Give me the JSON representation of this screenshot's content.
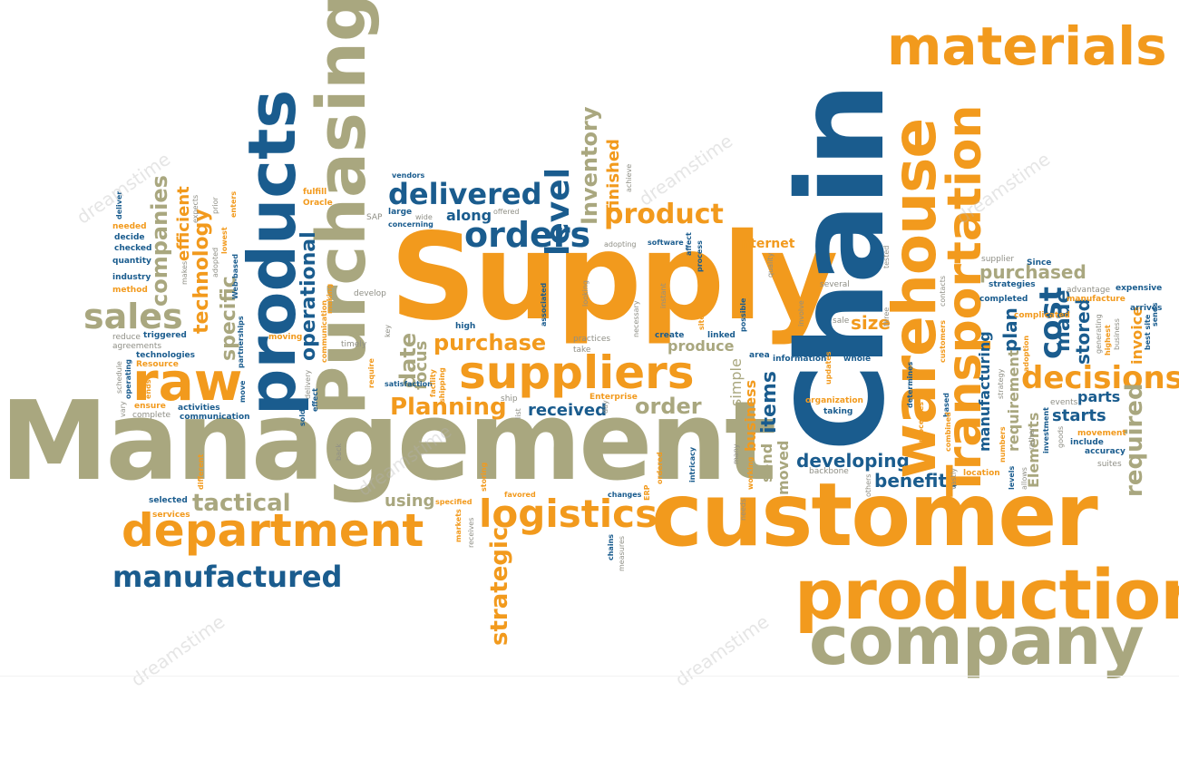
{
  "words": {
    "management": "Management",
    "supply": "Supply",
    "chain": "Chain",
    "customer": "customer",
    "production": "production",
    "company": "company",
    "materials": "materials",
    "warehouse": "warehouse",
    "transportation": "Transportation",
    "products": "products",
    "purchasing": "Purchasing",
    "raw": "raw",
    "suppliers": "suppliers",
    "department": "department",
    "logistics": "logistics",
    "manufactured": "manufactured",
    "tactical": "tactical",
    "sales": "sales",
    "delivered": "delivered",
    "orders": "orders",
    "along": "along",
    "level": "level",
    "inventory": "Inventory",
    "finished": "finished",
    "product": "product",
    "purchase": "purchase",
    "planning": "Planning",
    "received": "received",
    "order": "order",
    "produce": "produce",
    "internet": "Internet",
    "decisions": "decisions",
    "parts": "parts",
    "starts": "starts",
    "required": "required",
    "cost": "cost",
    "plan": "plan",
    "made": "made",
    "stored": "stored",
    "invoice": "invoice",
    "purchased": "purchased",
    "developing": "developing",
    "benefits": "benefits",
    "items": "items",
    "size": "size",
    "strategic": "strategic",
    "using": "using",
    "companies": "companies",
    "technology": "technology",
    "efficient": "efficient",
    "specific": "specific",
    "operational": "operational",
    "date": "date",
    "focus": "focus",
    "business": "business",
    "simple": "simple",
    "moved": "moved",
    "send": "send",
    "manufacturing": "manufacturing",
    "requirement": "requirement",
    "elements": "Elements"
  },
  "small_words": {
    "deliver": "deliver",
    "needed": "needed",
    "decide": "decide",
    "checked": "checked",
    "quantity": "quantity",
    "industry": "industry",
    "method": "method",
    "reduce": "reduce",
    "agreements": "agreements",
    "triggered": "triggered",
    "technologies": "technologies",
    "resource": "Resource",
    "operating": "operating",
    "ensure": "ensure",
    "complete": "complete",
    "activities": "activities",
    "communication": "communication",
    "selected": "selected",
    "services": "services",
    "different": "different",
    "moving": "moving",
    "timely": "timely",
    "web_based": "Web-based",
    "partnerships": "partnerships",
    "fulfill": "fulfill",
    "oracle": "Oracle",
    "vendors": "vendors",
    "sap": "SAP",
    "large": "large",
    "wide": "wide",
    "concerning": "concerning",
    "offered": "offered",
    "high": "high",
    "develop": "develop",
    "satisfaction": "satisfaction",
    "practices": "practices",
    "take": "take",
    "enterprise": "Enterprise",
    "ship": "ship",
    "specified": "specified",
    "favored": "favored",
    "changes": "changes",
    "adopting": "adopting",
    "software": "software",
    "create": "create",
    "linked": "linked",
    "information": "information",
    "whole": "whole",
    "organization": "organization",
    "taking": "taking",
    "backbone": "backbone",
    "several": "several",
    "sale": "sale",
    "supplier": "supplier",
    "strategies": "strategies",
    "completed": "completed",
    "complicated": "complicated",
    "since": "Since",
    "advantage": "advantage",
    "manufacture": "manufacture",
    "expensive": "expensive",
    "arrives": "arrives",
    "events": "events",
    "movement": "movement",
    "include": "include",
    "accuracy": "accuracy",
    "suites": "suites",
    "location": "location",
    "best_site": "best site",
    "area": "area",
    "expects": "expects",
    "makes": "makes",
    "prior": "prior",
    "enters": "enters",
    "lowest": "lowest",
    "adopted": "adopted",
    "associated": "associated",
    "looking": "looking",
    "instant": "instant",
    "necessary": "necessary",
    "achieve": "achieve",
    "affect": "affect",
    "process": "process",
    "sites": "sites",
    "possible": "possible",
    "quality": "quality",
    "involve": "involve",
    "updates": "updates",
    "tested": "tested",
    "contacts": "contacts",
    "three": "three",
    "processes": "processes",
    "determines": "determines",
    "others": "others",
    "vastly": "vastly",
    "combined": "combined",
    "based": "based",
    "customers": "customers",
    "numbers": "numbers",
    "levels": "levels",
    "allows": "allows",
    "rather": "rather",
    "investment": "investment",
    "adoption": "adoption",
    "generating": "generating",
    "highest": "highest",
    "ordered": "ordered",
    "intricacy": "intricacy",
    "working": "working",
    "many": "many",
    "needs": "needs",
    "chains": "chains",
    "measures": "measures",
    "erp": "ERP",
    "markets": "markets",
    "receives": "receives",
    "storing": "storing",
    "sold": "sold",
    "back": "back",
    "require": "require",
    "vary": "vary",
    "schedule": "schedule",
    "ends": "ends",
    "move": "move",
    "key": "key",
    "delivery": "delivery",
    "facility": "facility",
    "shipping": "shipping",
    "list": "list",
    "day": "day",
    "effect": "effect",
    "making": "making",
    "strategy": "strategy",
    "sends": "sends",
    "goods": "goods"
  },
  "watermark": "dreamstime"
}
